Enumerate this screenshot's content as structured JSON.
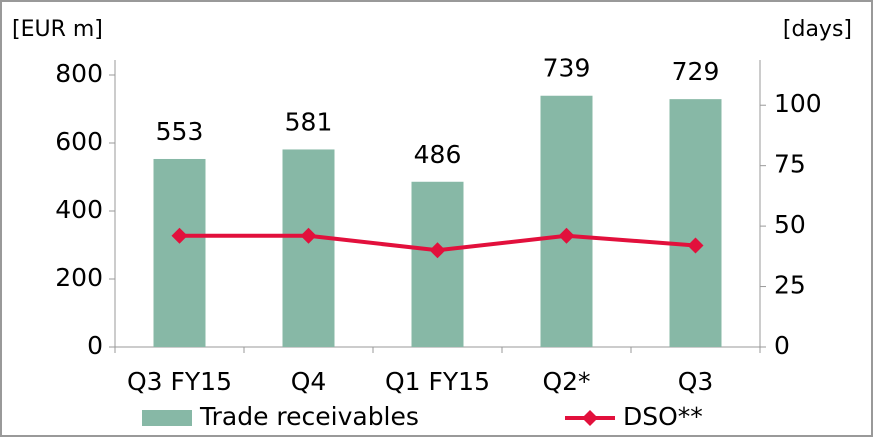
{
  "chart_data": {
    "type": "bar",
    "y_label": "[EUR m]",
    "y2_label": "[days]",
    "categories": [
      "Q3 FY15",
      "Q4",
      "Q1 FY15",
      "Q2*",
      "Q3"
    ],
    "series": [
      {
        "name": "Trade receivables",
        "color": "#87b8a6",
        "type": "bar",
        "values": [
          553,
          581,
          486,
          739,
          729
        ]
      },
      {
        "name": "DSO**",
        "color": "#e2103c",
        "type": "line",
        "axis": "y2",
        "values": [
          46,
          46,
          40,
          46,
          42
        ]
      }
    ],
    "ylim": [
      0,
      800
    ],
    "yticks": [
      0,
      200,
      400,
      600,
      800
    ],
    "y2lim": [
      0,
      112.5
    ],
    "y2ticks": [
      0,
      25,
      50,
      75,
      100
    ]
  }
}
